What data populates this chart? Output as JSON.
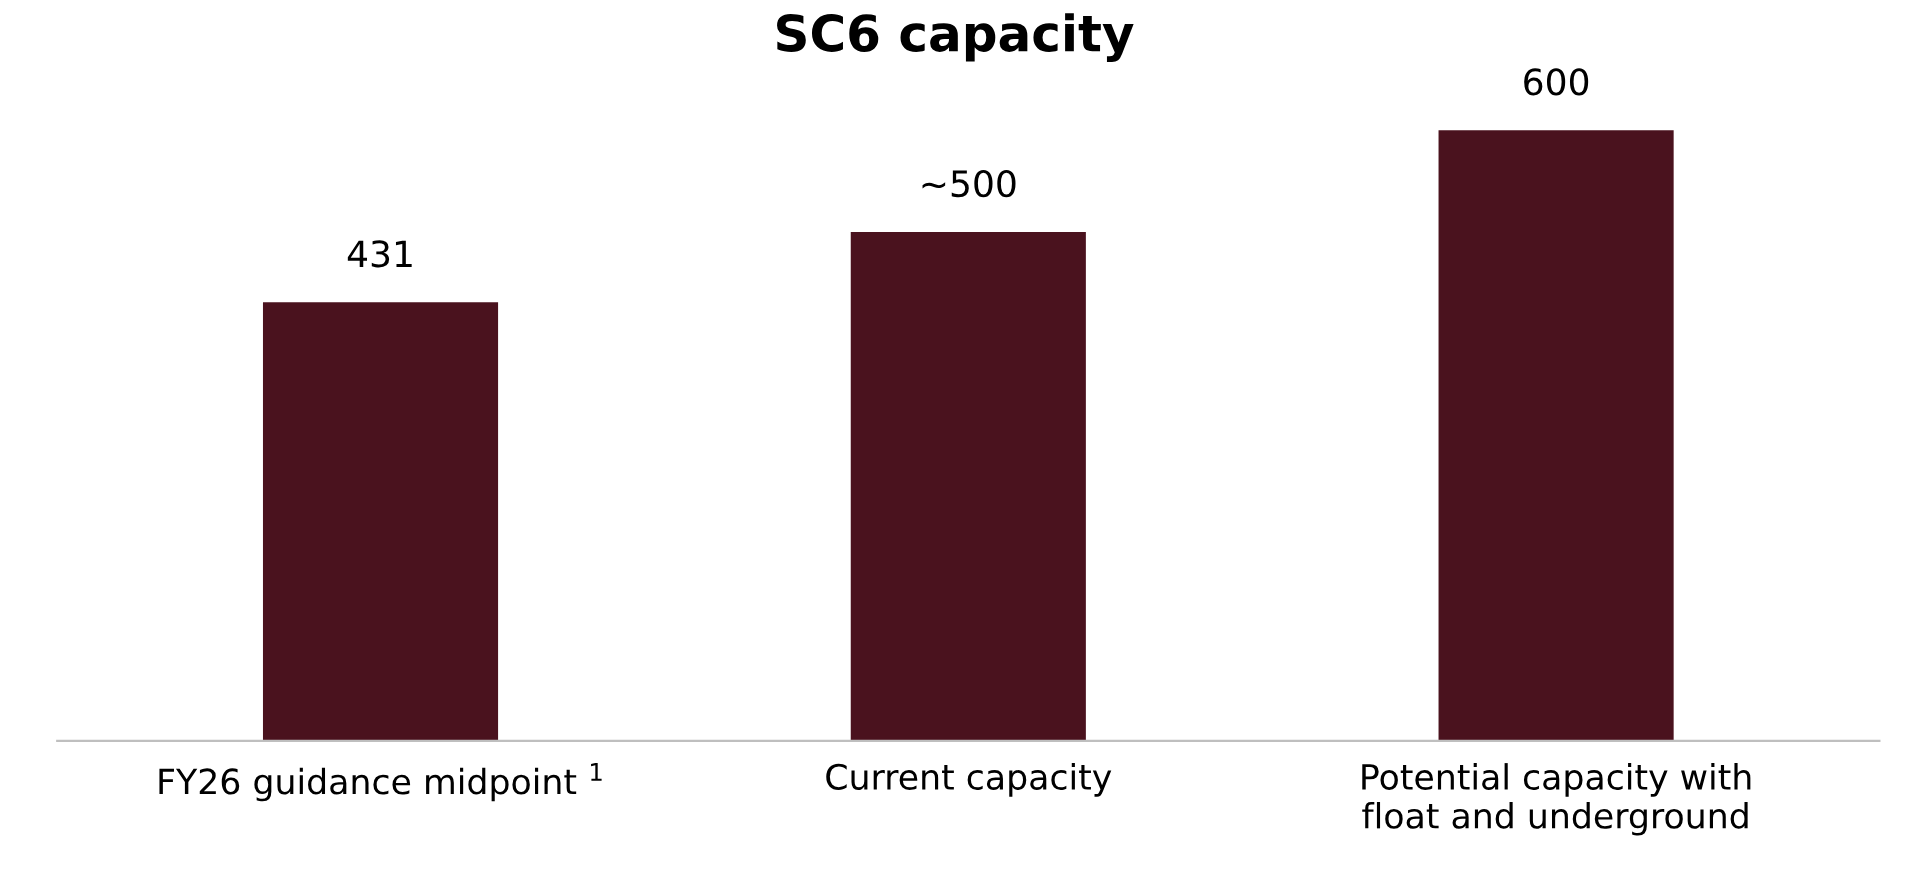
{
  "chart_data": {
    "type": "bar",
    "title": "SC6 capacity",
    "categories": [
      "FY26 guidance midpoint $^{1}$",
      "Current capacity",
      "Potential capacity with\nfloat and underground"
    ],
    "values": [
      431,
      500,
      600
    ],
    "value_labels": [
      "431",
      "~500",
      "600"
    ],
    "color": "#4a121e",
    "grid": false,
    "legend": false
  }
}
